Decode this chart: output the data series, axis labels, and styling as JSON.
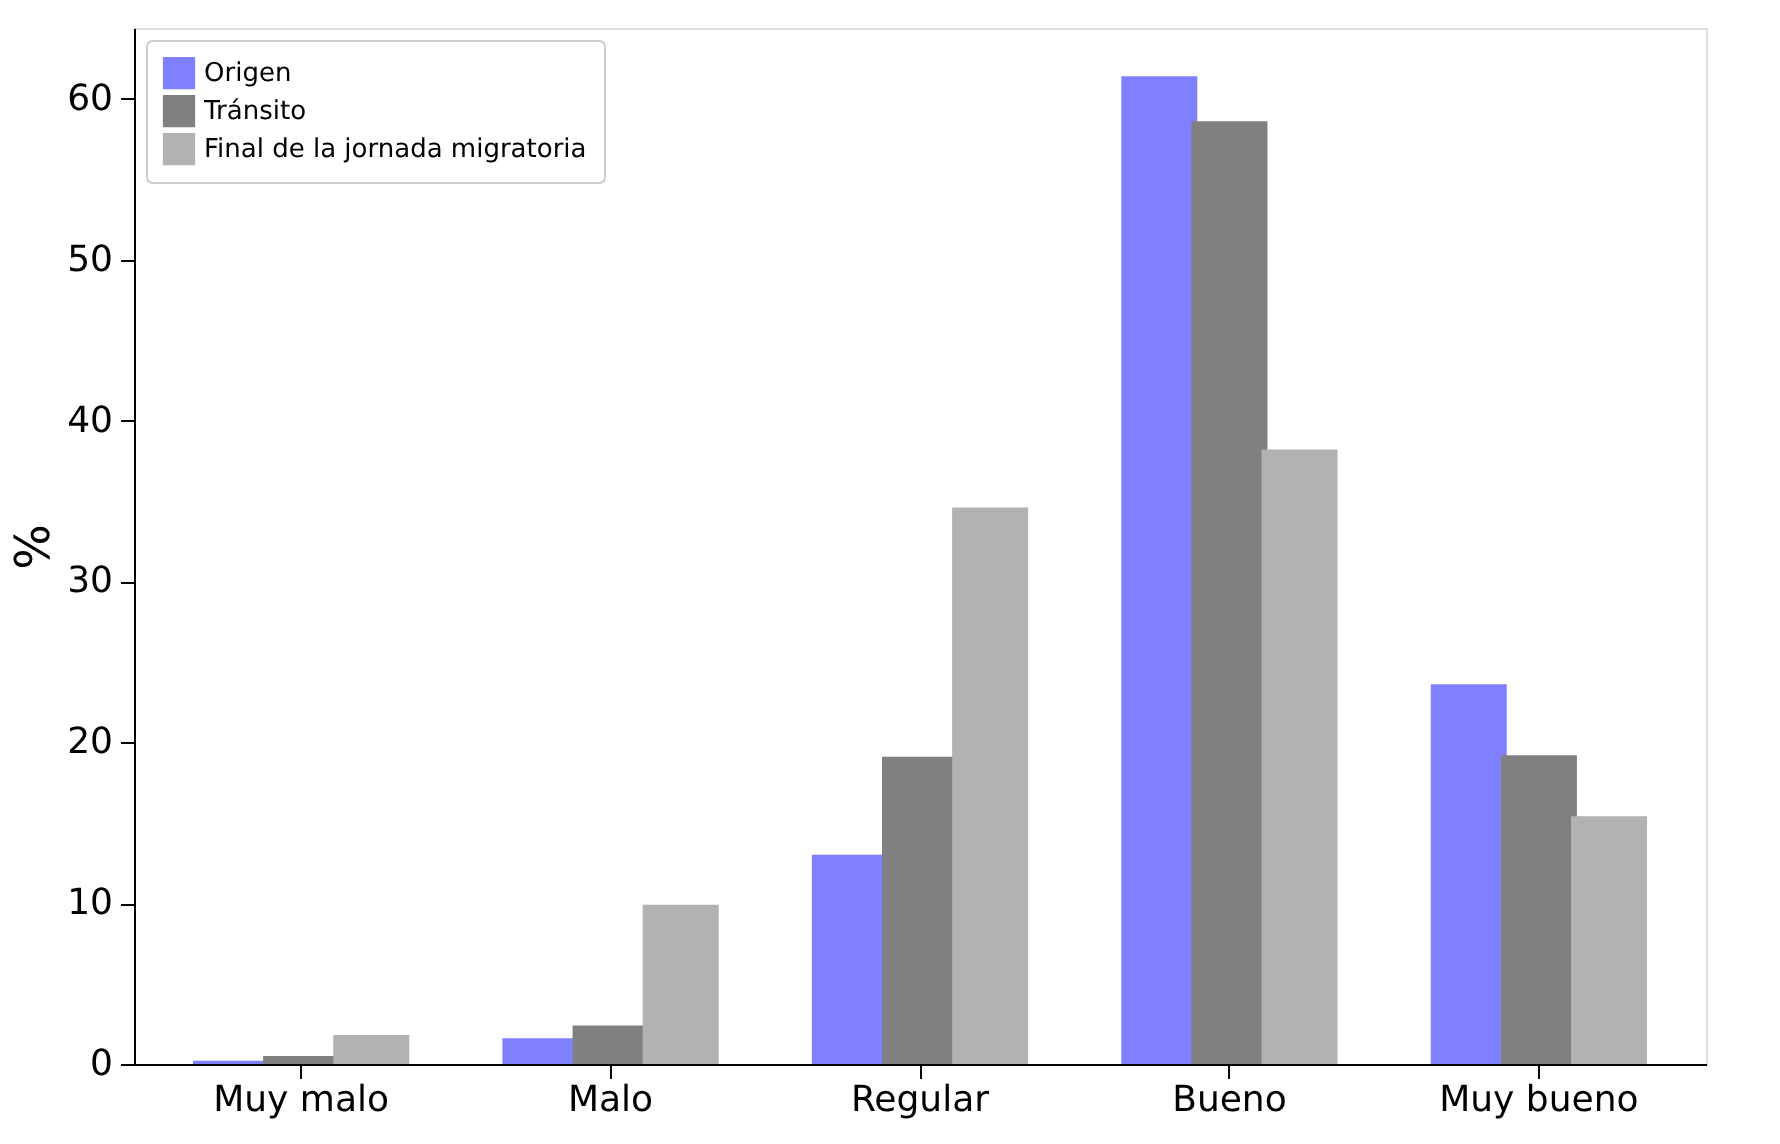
{
  "chart_data": {
    "type": "bar",
    "ylabel": "%",
    "categories": [
      "Muy malo",
      "Malo",
      "Regular",
      "Bueno",
      "Muy bueno"
    ],
    "series": [
      {
        "name": "Origen",
        "color": "#8080ff",
        "values": [
          0.2,
          1.6,
          13.0,
          61.4,
          23.6
        ]
      },
      {
        "name": "Tránsito",
        "color": "#808080",
        "values": [
          0.5,
          2.4,
          19.1,
          58.6,
          19.2
        ]
      },
      {
        "name": "Final de la jornada migratoria",
        "color": "#b2b2b2",
        "values": [
          1.8,
          9.9,
          34.6,
          38.2,
          15.4
        ]
      }
    ],
    "ylim": [
      0,
      64.4
    ],
    "yticks": [
      0,
      10,
      20,
      30,
      40,
      50,
      60
    ],
    "grid": false,
    "legend": "top left"
  }
}
